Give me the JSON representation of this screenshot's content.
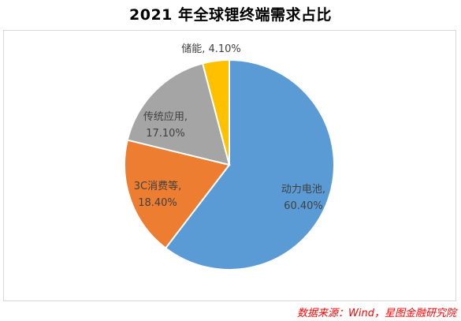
{
  "chart_data": {
    "type": "pie",
    "title": "2021 年全球锂终端需求占比",
    "slices": [
      {
        "label": "动力电池",
        "value": 60.4,
        "value_text": "60.40%",
        "color": "#5b9bd5"
      },
      {
        "label": "3C消费等",
        "value": 18.4,
        "value_text": "18.40%",
        "color": "#ed7d31"
      },
      {
        "label": "传统应用",
        "value": 17.1,
        "value_text": "17.10%",
        "color": "#a5a5a5"
      },
      {
        "label": "储能",
        "value": 4.1,
        "value_text": "4.10%",
        "color": "#ffc000"
      }
    ],
    "start_angle_deg": 0,
    "direction": "clockwise"
  },
  "source": {
    "text": "数据来源：Wind，星图金融研究院",
    "color": "#ff0000"
  }
}
